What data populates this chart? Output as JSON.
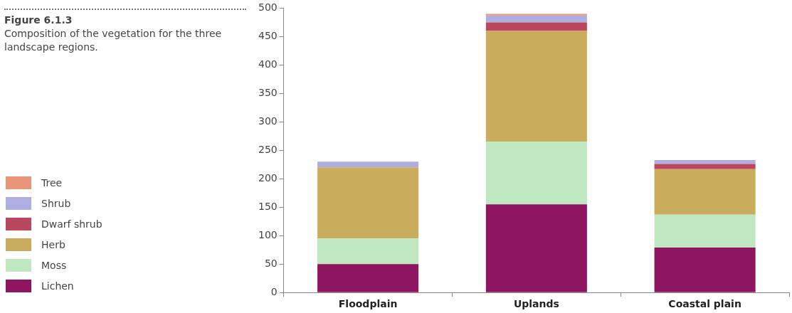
{
  "chart_data": {
    "type": "bar",
    "title": "Figure 6.1.3",
    "subtitle": "Composition of the vegetation for the three landscape regions.",
    "categories": [
      "Floodplain",
      "Uplands",
      "Coastal plain"
    ],
    "series": [
      {
        "name": "Lichen",
        "color": "#8e1560",
        "values": [
          50,
          155,
          79
        ]
      },
      {
        "name": "Moss",
        "color": "#bfe8c0",
        "values": [
          45,
          110,
          58
        ]
      },
      {
        "name": "Herb",
        "color": "#c9ad5c",
        "values": [
          125,
          195,
          80
        ]
      },
      {
        "name": "Dwarf shrub",
        "color": "#b9485f",
        "values": [
          0,
          15,
          9
        ]
      },
      {
        "name": "Shrub",
        "color": "#aeaee0",
        "values": [
          10,
          12,
          7
        ]
      },
      {
        "name": "Tree",
        "color": "#e8957a",
        "values": [
          0,
          3,
          0
        ]
      }
    ],
    "stacked": true,
    "ylim": [
      0,
      500
    ],
    "yticks": [
      0,
      50,
      100,
      150,
      200,
      250,
      300,
      350,
      400,
      450,
      500
    ],
    "grid": false,
    "legend": "left"
  }
}
